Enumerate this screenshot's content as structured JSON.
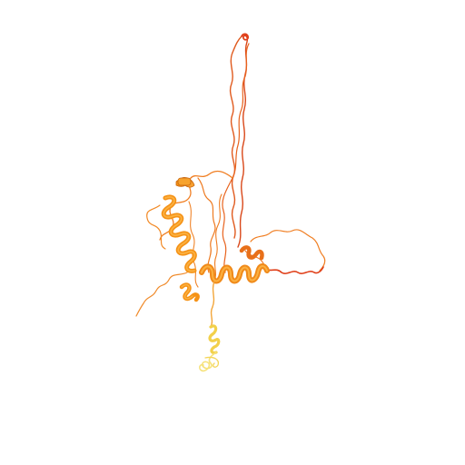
{
  "viewer": {
    "background": "#ffffff",
    "subject": "protein-ribbon-structure"
  },
  "palette": {
    "tip_red": "#e0401a",
    "coil_red_orange": "#e05a1e",
    "coil_orange": "#f07e22",
    "helix_orange": "#f59216",
    "helix_shadow": "#c8660e",
    "helix_light": "#fbb040",
    "tail_yellow": "#f2d04a",
    "tail_pale": "#f6e27a"
  }
}
